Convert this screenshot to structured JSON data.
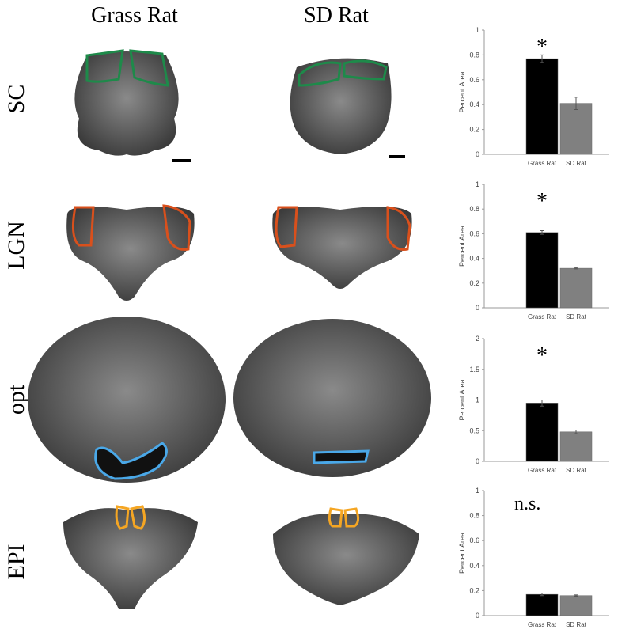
{
  "figure": {
    "columns": [
      "Grass Rat",
      "SD Rat"
    ],
    "rows": [
      "SC",
      "LGN",
      "opt",
      "EPI"
    ]
  },
  "chart_data": [
    {
      "type": "bar",
      "y_label": "Percent Area",
      "categories": [
        "Grass Rat",
        "SD Rat"
      ],
      "values": [
        0.77,
        0.41
      ],
      "errors": [
        0.03,
        0.05
      ],
      "colors": [
        "#000000",
        "#808080"
      ],
      "ylim": [
        0,
        1
      ],
      "yticks": [
        0,
        0.2,
        0.4,
        0.6,
        0.8,
        1
      ],
      "annotation": "*"
    },
    {
      "type": "bar",
      "y_label": "Percent Area",
      "categories": [
        "Grass Rat",
        "SD Rat"
      ],
      "values": [
        0.61,
        0.32
      ],
      "errors": [
        0.015,
        0.005
      ],
      "colors": [
        "#000000",
        "#808080"
      ],
      "ylim": [
        0,
        1
      ],
      "yticks": [
        0,
        0.2,
        0.4,
        0.6,
        0.8,
        1
      ],
      "annotation": "*"
    },
    {
      "type": "bar",
      "y_label": "Percent Area",
      "categories": [
        "Grass Rat",
        "SD Rat"
      ],
      "values": [
        0.95,
        0.48
      ],
      "errors": [
        0.05,
        0.03
      ],
      "colors": [
        "#000000",
        "#808080"
      ],
      "ylim": [
        0,
        2
      ],
      "yticks": [
        0,
        0.5,
        1,
        1.5,
        2
      ],
      "annotation": "*"
    },
    {
      "type": "bar",
      "y_label": "Percent Area",
      "categories": [
        "Grass Rat",
        "SD Rat"
      ],
      "values": [
        0.17,
        0.16
      ],
      "errors": [
        0.01,
        0.005
      ],
      "colors": [
        "#000000",
        "#808080"
      ],
      "ylim": [
        0,
        1
      ],
      "yticks": [
        0,
        0.2,
        0.4,
        0.6,
        0.8,
        1
      ],
      "annotation": "n.s."
    }
  ]
}
